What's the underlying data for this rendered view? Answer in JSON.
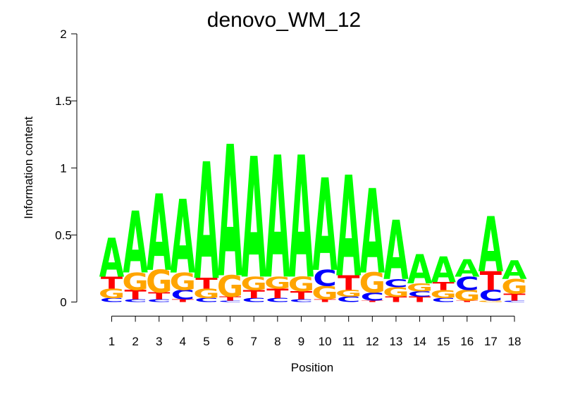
{
  "chart_data": {
    "type": "sequence-logo",
    "title": "denovo_WM_12",
    "xlabel": "Position",
    "ylabel": "Information content",
    "ylim": [
      0,
      2
    ],
    "yticks": [
      0,
      0.5,
      1,
      1.5,
      2
    ],
    "ytick_labels": [
      "0",
      "0.5",
      "1",
      "1.5",
      "2"
    ],
    "positions": [
      1,
      2,
      3,
      4,
      5,
      6,
      7,
      8,
      9,
      10,
      11,
      12,
      13,
      14,
      15,
      16,
      17,
      18
    ],
    "colors": {
      "A": "#00ff00",
      "C": "#0000ff",
      "G": "#ffa500",
      "T": "#ff0000"
    },
    "stacks": [
      [
        {
          "letter": "C",
          "height": 0.03
        },
        {
          "letter": "G",
          "height": 0.07
        },
        {
          "letter": "T",
          "height": 0.09
        },
        {
          "letter": "A",
          "height": 0.29
        }
      ],
      [
        {
          "letter": "C",
          "height": 0.02
        },
        {
          "letter": "T",
          "height": 0.07
        },
        {
          "letter": "G",
          "height": 0.13
        },
        {
          "letter": "A",
          "height": 0.46
        }
      ],
      [
        {
          "letter": "C",
          "height": 0.02
        },
        {
          "letter": "T",
          "height": 0.05
        },
        {
          "letter": "G",
          "height": 0.17
        },
        {
          "letter": "A",
          "height": 0.57
        }
      ],
      [
        {
          "letter": "T",
          "height": 0.02
        },
        {
          "letter": "C",
          "height": 0.07
        },
        {
          "letter": "G",
          "height": 0.13
        },
        {
          "letter": "A",
          "height": 0.55
        }
      ],
      [
        {
          "letter": "C",
          "height": 0.03
        },
        {
          "letter": "G",
          "height": 0.07
        },
        {
          "letter": "T",
          "height": 0.08
        },
        {
          "letter": "A",
          "height": 0.87
        }
      ],
      [
        {
          "letter": "C",
          "height": 0.01
        },
        {
          "letter": "T",
          "height": 0.03
        },
        {
          "letter": "G",
          "height": 0.16
        },
        {
          "letter": "A",
          "height": 0.98
        }
      ],
      [
        {
          "letter": "C",
          "height": 0.03
        },
        {
          "letter": "T",
          "height": 0.06
        },
        {
          "letter": "G",
          "height": 0.1
        },
        {
          "letter": "A",
          "height": 0.9
        }
      ],
      [
        {
          "letter": "C",
          "height": 0.03
        },
        {
          "letter": "T",
          "height": 0.07
        },
        {
          "letter": "G",
          "height": 0.09
        },
        {
          "letter": "A",
          "height": 0.91
        }
      ],
      [
        {
          "letter": "C",
          "height": 0.02
        },
        {
          "letter": "T",
          "height": 0.06
        },
        {
          "letter": "G",
          "height": 0.11
        },
        {
          "letter": "A",
          "height": 0.91
        }
      ],
      [
        {
          "letter": "T",
          "height": 0.02
        },
        {
          "letter": "G",
          "height": 0.1
        },
        {
          "letter": "C",
          "height": 0.12
        },
        {
          "letter": "A",
          "height": 0.69
        }
      ],
      [
        {
          "letter": "C",
          "height": 0.04
        },
        {
          "letter": "G",
          "height": 0.05
        },
        {
          "letter": "T",
          "height": 0.11
        },
        {
          "letter": "A",
          "height": 0.75
        }
      ],
      [
        {
          "letter": "T",
          "height": 0.01
        },
        {
          "letter": "C",
          "height": 0.06
        },
        {
          "letter": "G",
          "height": 0.15
        },
        {
          "letter": "A",
          "height": 0.63
        }
      ],
      [
        {
          "letter": "T",
          "height": 0.04
        },
        {
          "letter": "G",
          "height": 0.07
        },
        {
          "letter": "C",
          "height": 0.06
        },
        {
          "letter": "A",
          "height": 0.44
        }
      ],
      [
        {
          "letter": "T",
          "height": 0.04
        },
        {
          "letter": "C",
          "height": 0.04
        },
        {
          "letter": "G",
          "height": 0.06
        },
        {
          "letter": "A",
          "height": 0.22
        }
      ],
      [
        {
          "letter": "C",
          "height": 0.03
        },
        {
          "letter": "G",
          "height": 0.06
        },
        {
          "letter": "T",
          "height": 0.06
        },
        {
          "letter": "A",
          "height": 0.19
        }
      ],
      [
        {
          "letter": "T",
          "height": 0.01
        },
        {
          "letter": "G",
          "height": 0.08
        },
        {
          "letter": "C",
          "height": 0.1
        },
        {
          "letter": "A",
          "height": 0.13
        }
      ],
      [
        {
          "letter": "G",
          "height": 0.01
        },
        {
          "letter": "C",
          "height": 0.08
        },
        {
          "letter": "T",
          "height": 0.14
        },
        {
          "letter": "A",
          "height": 0.41
        }
      ],
      [
        {
          "letter": "C",
          "height": 0.01
        },
        {
          "letter": "T",
          "height": 0.05
        },
        {
          "letter": "G",
          "height": 0.11
        },
        {
          "letter": "A",
          "height": 0.14
        }
      ]
    ]
  }
}
